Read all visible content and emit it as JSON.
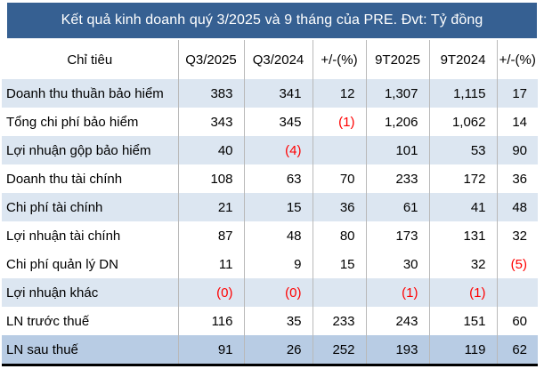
{
  "colors": {
    "title_bg": "#366092",
    "title_text": "#ffffff",
    "alt_row_bg": "#dce6f1",
    "total_row_bg": "#b8cce4",
    "grid_line": "#b9b9b9",
    "negative": "#ff0000",
    "bottom_border": "#000000"
  },
  "chart_data": {
    "type": "table",
    "title": "Kết quả kinh doanh quý 3/2025 và 9 tháng của PRE. Đvt: Tỷ đồng",
    "unit": "Tỷ đồng",
    "columns": [
      "Chỉ tiêu",
      "Q3/2025",
      "Q3/2024",
      "+/-(%)",
      "9T2025",
      "9T2024",
      "+/-(%)"
    ],
    "rows": [
      {
        "label": "Doanh thu thuần bảo hiểm",
        "values": [
          "383",
          "341",
          "12",
          "1,307",
          "1,115",
          "17"
        ],
        "style": "alt"
      },
      {
        "label": "Tổng chi phí bảo hiểm",
        "values": [
          "343",
          "345",
          "(1)",
          "1,206",
          "1,062",
          "14"
        ],
        "style": "plain"
      },
      {
        "label": "Lợi nhuận gộp  bảo hiểm",
        "values": [
          "40",
          "(4)",
          "",
          "101",
          "53",
          "90"
        ],
        "style": "alt"
      },
      {
        "label": "Doanh thu tài chính",
        "values": [
          "108",
          "63",
          "70",
          "233",
          "172",
          "36"
        ],
        "style": "plain"
      },
      {
        "label": "Chi phí tài chính",
        "values": [
          "21",
          "15",
          "36",
          "61",
          "41",
          "48"
        ],
        "style": "alt"
      },
      {
        "label": "Lợi nhuận tài chính",
        "values": [
          "87",
          "48",
          "80",
          "173",
          "131",
          "32"
        ],
        "style": "plain"
      },
      {
        "label": "Chi phí quản lý DN",
        "values": [
          "11",
          "9",
          "15",
          "30",
          "32",
          "(5)"
        ],
        "style": "plain"
      },
      {
        "label": "Lợi nhuận khác",
        "values": [
          "(0)",
          "(0)",
          "",
          "(1)",
          "(1)",
          ""
        ],
        "style": "alt"
      },
      {
        "label": "LN trước thuế",
        "values": [
          "116",
          "35",
          "233",
          "243",
          "151",
          "60"
        ],
        "style": "plain"
      },
      {
        "label": "LN sau thuế",
        "values": [
          "91",
          "26",
          "252",
          "193",
          "119",
          "62"
        ],
        "style": "total"
      }
    ]
  }
}
